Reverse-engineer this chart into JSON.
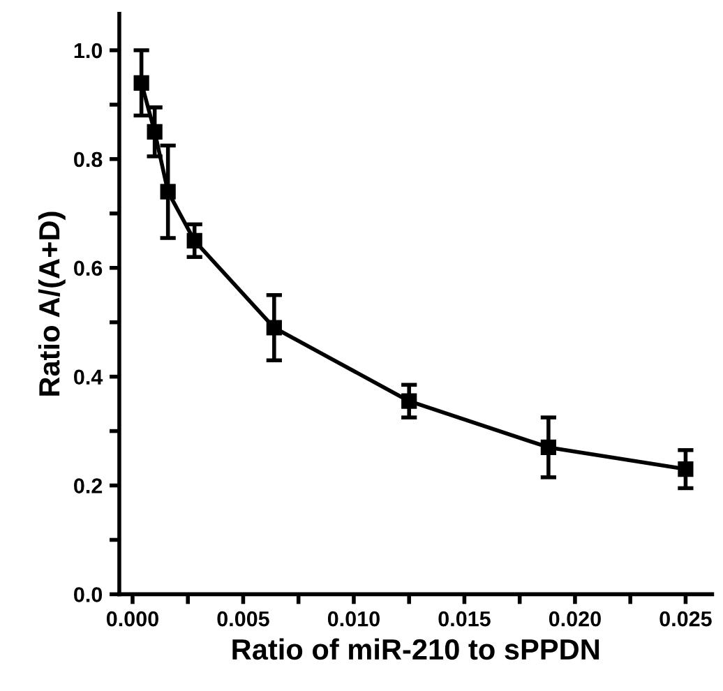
{
  "chart_data": {
    "type": "line",
    "xlabel": "Ratio of miR-210 to sPPDN",
    "ylabel": "Ratio A/(A+D)",
    "x": [
      0.0004,
      0.001,
      0.0016,
      0.0028,
      0.0064,
      0.0125,
      0.0188,
      0.025
    ],
    "series": [
      {
        "color": "#000000",
        "values": [
          0.94,
          0.85,
          0.74,
          0.65,
          0.49,
          0.355,
          0.27,
          0.23
        ],
        "errors": [
          0.06,
          0.045,
          0.085,
          0.03,
          0.06,
          0.03,
          0.055,
          0.035
        ]
      }
    ],
    "marker": "square",
    "line_style": "solid",
    "grid": false,
    "legend": false,
    "xlim": [
      -0.0006,
      0.0262
    ],
    "ylim": [
      0.0,
      1.067
    ],
    "xticks": [
      {
        "value": 0.0,
        "label": "0.000"
      },
      {
        "value": 0.0025,
        "label": null
      },
      {
        "value": 0.005,
        "label": "0.005"
      },
      {
        "value": 0.0075,
        "label": null
      },
      {
        "value": 0.01,
        "label": "0.010"
      },
      {
        "value": 0.0125,
        "label": null
      },
      {
        "value": 0.015,
        "label": "0.015"
      },
      {
        "value": 0.0175,
        "label": null
      },
      {
        "value": 0.02,
        "label": "0.020"
      },
      {
        "value": 0.0225,
        "label": null
      },
      {
        "value": 0.025,
        "label": "0.025"
      }
    ],
    "yticks": [
      {
        "value": 0.0,
        "label": "0.0"
      },
      {
        "value": 0.1,
        "label": null
      },
      {
        "value": 0.2,
        "label": "0.2"
      },
      {
        "value": 0.3,
        "label": null
      },
      {
        "value": 0.4,
        "label": "0.4"
      },
      {
        "value": 0.5,
        "label": null
      },
      {
        "value": 0.6,
        "label": "0.6"
      },
      {
        "value": 0.7,
        "label": null
      },
      {
        "value": 0.8,
        "label": "0.8"
      },
      {
        "value": 0.9,
        "label": null
      },
      {
        "value": 1.0,
        "label": "1.0"
      }
    ]
  }
}
